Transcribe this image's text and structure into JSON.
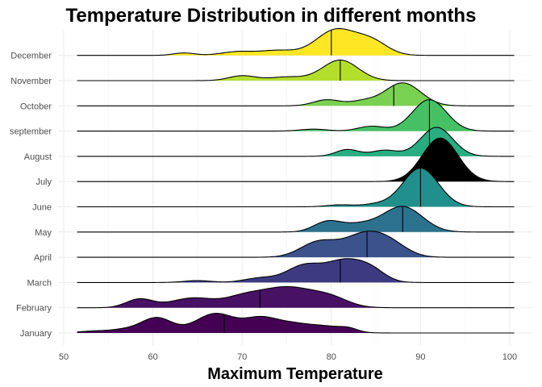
{
  "chart_data": {
    "type": "ridgeline",
    "title": "Temperature Distribution in different months",
    "xlabel": "Maximum Temperature",
    "ylabel": "",
    "xlim": [
      49,
      101.5
    ],
    "xticks": [
      50,
      60,
      70,
      80,
      90,
      100
    ],
    "x_range": [
      51.5,
      100.5
    ],
    "grid": true,
    "series": [
      {
        "name": "January",
        "color": "#440154",
        "median": 68,
        "peaks": [
          [
            53,
            0.6,
            1.5
          ],
          [
            57,
            1.5,
            2
          ],
          [
            60.5,
            6,
            1.7
          ],
          [
            67,
            8,
            2.2
          ],
          [
            72,
            5.5,
            1.8
          ],
          [
            75.5,
            3.5,
            2
          ],
          [
            79.5,
            2.5,
            2
          ],
          [
            82,
            1.2,
            1
          ]
        ]
      },
      {
        "name": "February",
        "color": "#471164",
        "median": 72,
        "peaks": [
          [
            58.5,
            3.5,
            1.5
          ],
          [
            64.5,
            4,
            2.5
          ],
          [
            70,
            3,
            2
          ],
          [
            75,
            8.5,
            3.2
          ],
          [
            80,
            3,
            2
          ]
        ]
      },
      {
        "name": "March",
        "color": "#3e3a81",
        "median": 81,
        "peaks": [
          [
            65,
            0.8,
            1.5
          ],
          [
            72,
            1.8,
            1.8
          ],
          [
            77,
            7,
            2
          ],
          [
            81.5,
            8.5,
            2
          ],
          [
            84.5,
            4.5,
            1.6
          ]
        ]
      },
      {
        "name": "April",
        "color": "#3b528b",
        "median": 84,
        "peaks": [
          [
            78.5,
            6,
            2
          ],
          [
            84,
            10,
            2.5
          ],
          [
            87,
            2.5,
            1.8
          ]
        ]
      },
      {
        "name": "May",
        "color": "#2c728e",
        "median": 88,
        "peaks": [
          [
            79.5,
            4,
            1.5
          ],
          [
            83,
            3,
            2
          ],
          [
            88,
            10.5,
            2.2
          ]
        ]
      },
      {
        "name": "June",
        "color": "#21908c",
        "median": 90,
        "peaks": [
          [
            81,
            0.8,
            1.5
          ],
          [
            85,
            1,
            1.5
          ],
          [
            90,
            16,
            2
          ]
        ]
      },
      {
        "name": "July",
        "color": "#000000",
        "median": 92,
        "peaks": [
          [
            92.2,
            18,
            2
          ]
        ]
      },
      {
        "name": "August",
        "color": "#27ad81",
        "median": 91,
        "peaks": [
          [
            81.8,
            2.8,
            1.3
          ],
          [
            86,
            2.5,
            1.5
          ],
          [
            91.8,
            12,
            1.8
          ]
        ]
      },
      {
        "name": "september",
        "color": "#46c065",
        "median": 91,
        "peaks": [
          [
            78,
            0.8,
            1.5
          ],
          [
            84.5,
            2,
            1.5
          ],
          [
            91,
            13,
            1.9
          ]
        ]
      },
      {
        "name": "October",
        "color": "#7ad151",
        "median": 87,
        "peaks": [
          [
            79.5,
            2.5,
            1.5
          ],
          [
            83.5,
            1.8,
            1.5
          ],
          [
            88,
            9.5,
            2
          ]
        ]
      },
      {
        "name": "November",
        "color": "#b4de2c",
        "median": 81,
        "peaks": [
          [
            70,
            2,
            1.5
          ],
          [
            75,
            1.5,
            2
          ],
          [
            81,
            8.5,
            2
          ]
        ]
      },
      {
        "name": "December",
        "color": "#fde725",
        "median": 80,
        "peaks": [
          [
            63.5,
            1,
            1.2
          ],
          [
            69.5,
            1.5,
            1.8
          ],
          [
            74,
            2,
            2
          ],
          [
            80.5,
            10.5,
            2.2
          ],
          [
            84.5,
            5.5,
            1.8
          ]
        ]
      }
    ]
  }
}
